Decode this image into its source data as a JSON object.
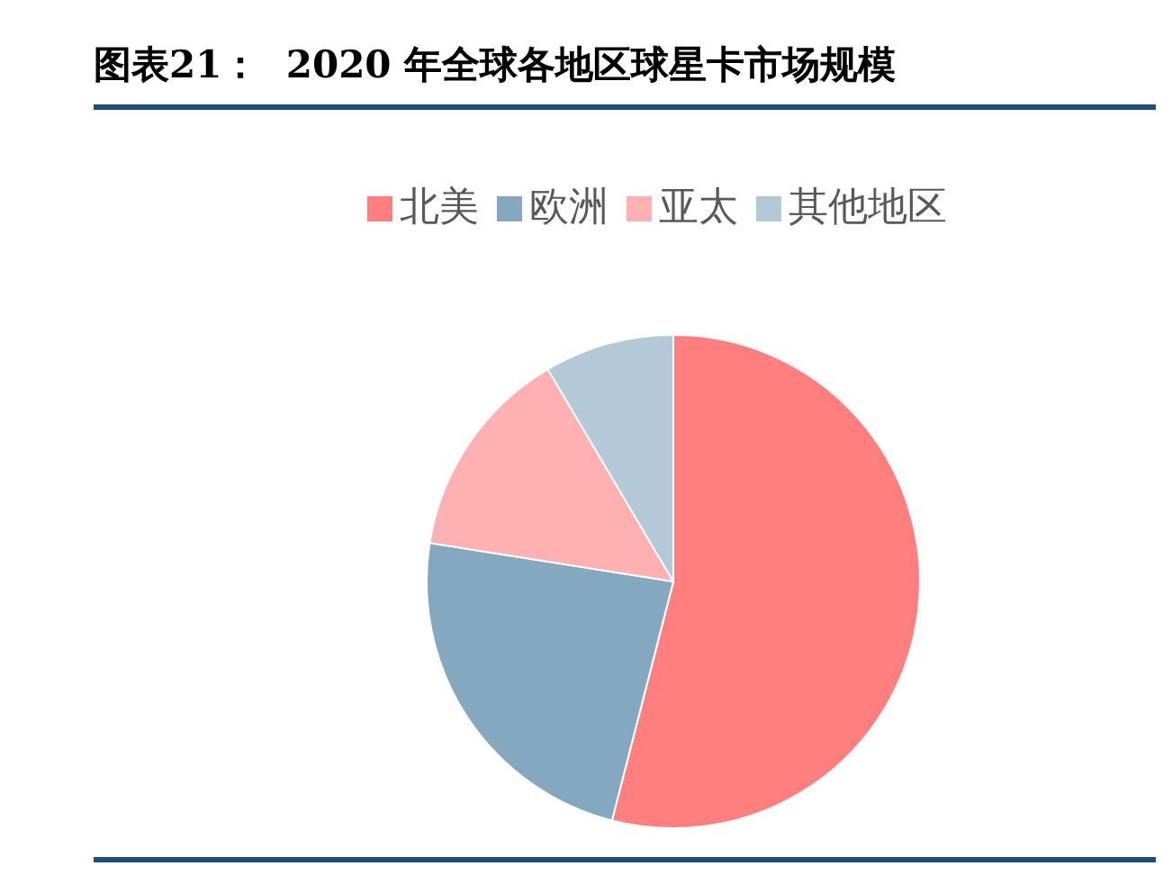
{
  "chart_data": {
    "type": "pie",
    "title": "图表21：  2020 年全球各地区球星卡市场规模",
    "categories": [
      "北美",
      "欧洲",
      "亚太",
      "其他地区"
    ],
    "values": [
      54,
      23.5,
      14,
      8.5
    ],
    "colors": [
      "#ff7f7f",
      "#84a8bf",
      "#ffb0b0",
      "#b4c9d8"
    ],
    "legend": "top"
  }
}
